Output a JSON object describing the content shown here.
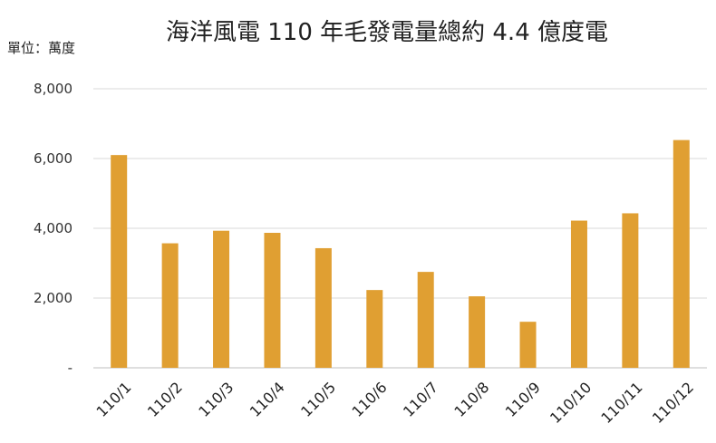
{
  "chart_data": {
    "type": "bar",
    "title": "海洋風電 110 年毛發電量總約 4.4 億度電",
    "unit_label": "單位：萬度",
    "categories": [
      "110/1",
      "110/2",
      "110/3",
      "110/4",
      "110/5",
      "110/6",
      "110/7",
      "110/8",
      "110/9",
      "110/10",
      "110/11",
      "110/12"
    ],
    "values": [
      6100,
      3570,
      3930,
      3870,
      3430,
      2230,
      2750,
      2050,
      1320,
      4220,
      4430,
      6530
    ],
    "ylim": [
      0,
      8000
    ],
    "yticks": [
      {
        "value": 0,
        "label": "-"
      },
      {
        "value": 2000,
        "label": "2,000"
      },
      {
        "value": 4000,
        "label": "4,000"
      },
      {
        "value": 6000,
        "label": "6,000"
      },
      {
        "value": 8000,
        "label": "8,000"
      }
    ],
    "grid": true,
    "legend": "none",
    "bar_color": "#E09F32"
  }
}
